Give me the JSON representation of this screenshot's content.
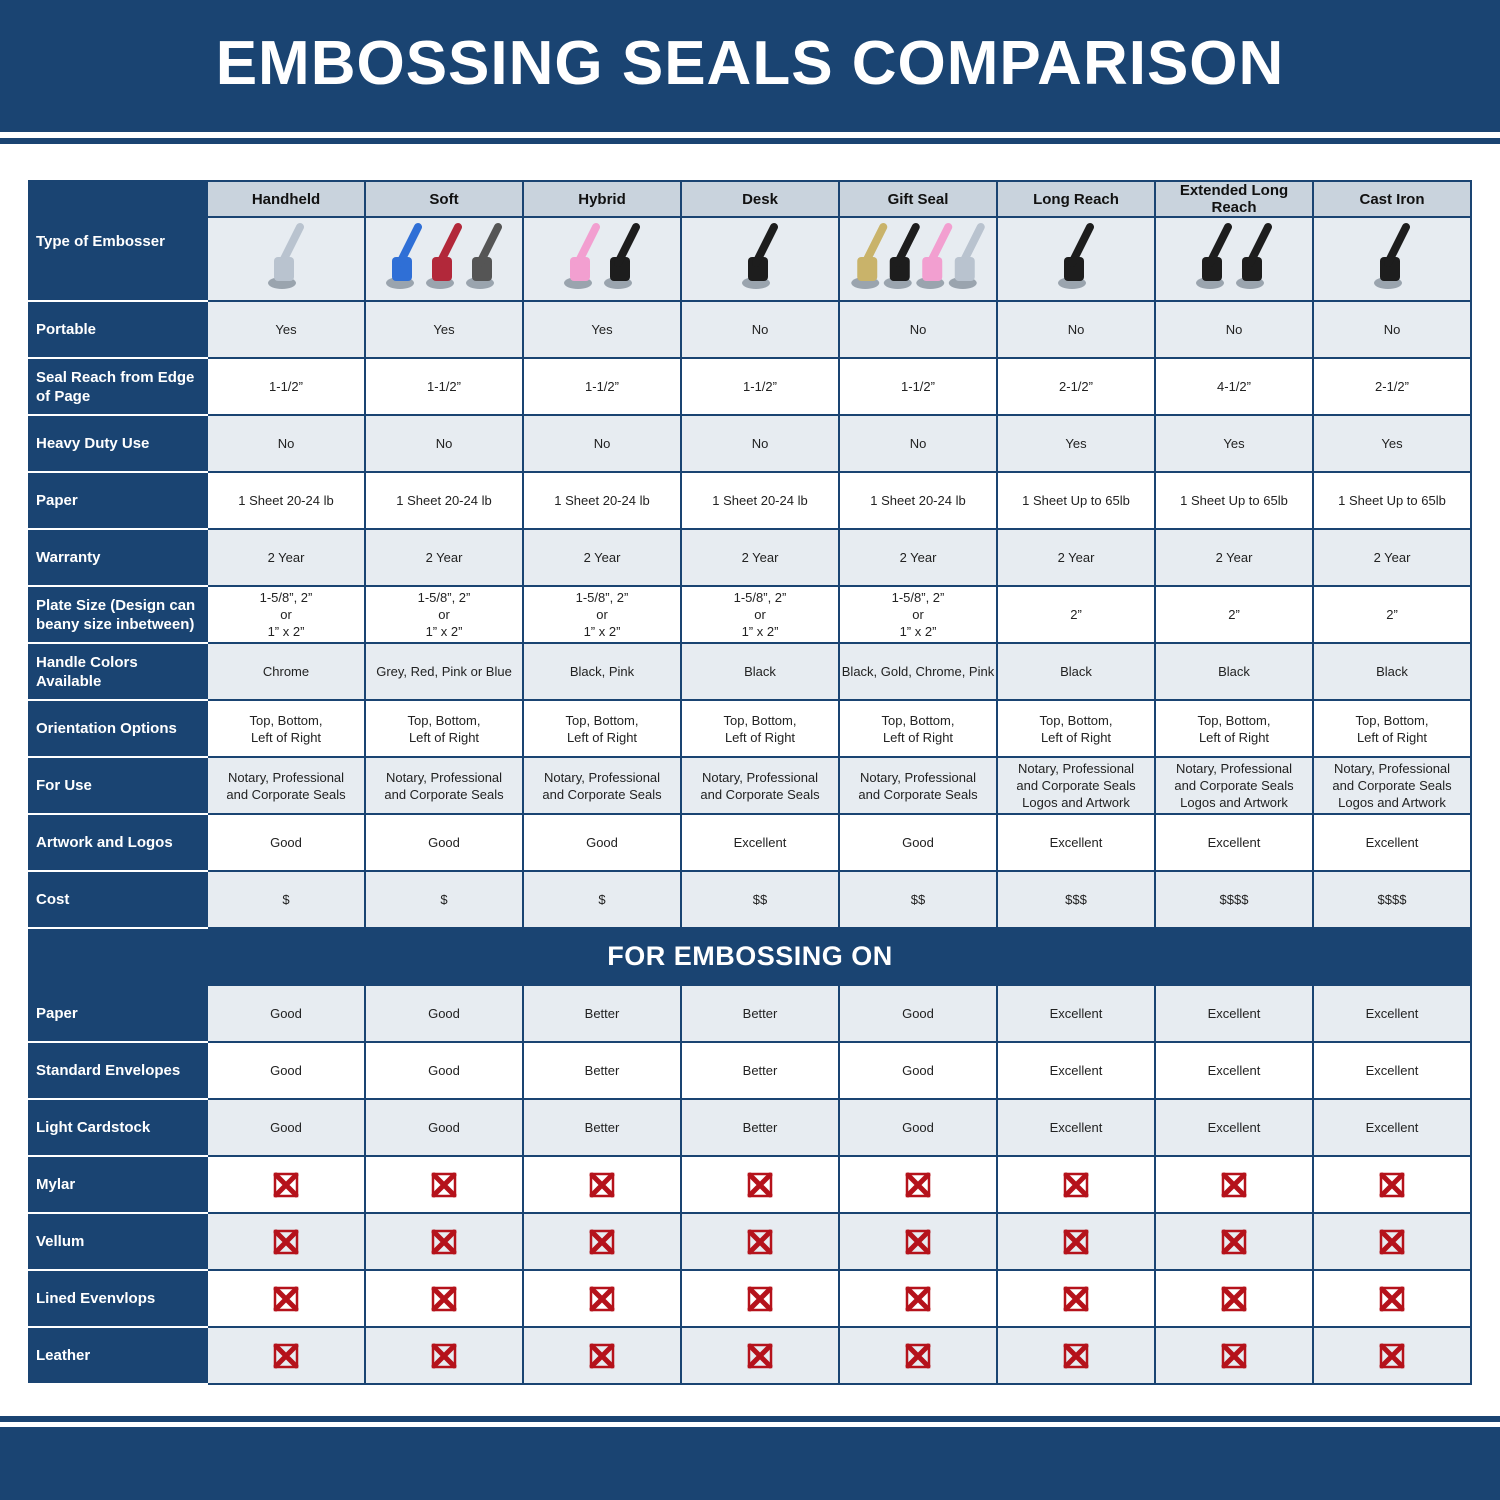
{
  "title": "EMBOSSING SEALS COMPARISON",
  "colors": {
    "navy": "#1a4472",
    "header_gray": "#c9d3dd",
    "row_gray": "#e7ecf1",
    "cross_red": "#b5121b"
  },
  "type_label": "Type of Embosser",
  "columns": [
    "Handheld",
    "Soft",
    "Hybrid",
    "Desk",
    "Gift Seal",
    "Long Reach",
    "Extended Long Reach",
    "Cast Iron"
  ],
  "rows": [
    {
      "label": "Portable",
      "values": [
        "Yes",
        "Yes",
        "Yes",
        "No",
        "No",
        "No",
        "No",
        "No"
      ]
    },
    {
      "label": "Seal Reach from Edge of Page",
      "values": [
        "1-1/2”",
        "1-1/2”",
        "1-1/2”",
        "1-1/2”",
        "1-1/2”",
        "2-1/2”",
        "4-1/2”",
        "2-1/2”"
      ]
    },
    {
      "label": "Heavy Duty Use",
      "values": [
        "No",
        "No",
        "No",
        "No",
        "No",
        "Yes",
        "Yes",
        "Yes"
      ]
    },
    {
      "label": "Paper",
      "values": [
        "1 Sheet 20-24 lb",
        "1 Sheet 20-24 lb",
        "1 Sheet 20-24 lb",
        "1 Sheet 20-24 lb",
        "1 Sheet 20-24 lb",
        "1 Sheet Up to 65lb",
        "1 Sheet Up to 65lb",
        "1 Sheet Up to 65lb"
      ]
    },
    {
      "label": "Warranty",
      "values": [
        "2 Year",
        "2 Year",
        "2 Year",
        "2 Year",
        "2 Year",
        "2 Year",
        "2 Year",
        "2 Year"
      ]
    },
    {
      "label": "Plate Size (Design can beany size inbetween)",
      "values": [
        "1-5/8”, 2”\nor\n1” x 2”",
        "1-5/8”, 2”\nor\n1” x 2”",
        "1-5/8”, 2”\nor\n1” x 2”",
        "1-5/8”, 2”\nor\n1” x 2”",
        "1-5/8”, 2”\nor\n1” x 2”",
        "2”",
        "2”",
        "2”"
      ]
    },
    {
      "label": "Handle Colors Available",
      "values": [
        "Chrome",
        "Grey, Red, Pink or Blue",
        "Black, Pink",
        "Black",
        "Black, Gold, Chrome, Pink",
        "Black",
        "Black",
        "Black"
      ]
    },
    {
      "label": "Orientation Options",
      "values": [
        "Top, Bottom,\nLeft of Right",
        "Top, Bottom,\nLeft of Right",
        "Top, Bottom,\nLeft of Right",
        "Top, Bottom,\nLeft of Right",
        "Top, Bottom,\nLeft of Right",
        "Top, Bottom,\nLeft of Right",
        "Top, Bottom,\nLeft of Right",
        "Top, Bottom,\nLeft of Right"
      ]
    },
    {
      "label": "For Use",
      "values": [
        "Notary, Professional\nand Corporate Seals",
        "Notary, Professional\nand Corporate Seals",
        "Notary, Professional\nand Corporate Seals",
        "Notary, Professional\nand Corporate Seals",
        "Notary, Professional\nand Corporate Seals",
        "Notary, Professional\nand Corporate Seals\nLogos and Artwork",
        "Notary, Professional\nand Corporate Seals\nLogos and Artwork",
        "Notary, Professional\nand Corporate Seals\nLogos and Artwork"
      ]
    },
    {
      "label": "Artwork and Logos",
      "values": [
        "Good",
        "Good",
        "Good",
        "Excellent",
        "Good",
        "Excellent",
        "Excellent",
        "Excellent"
      ]
    },
    {
      "label": "Cost",
      "values": [
        "$",
        "$",
        "$",
        "$$",
        "$$",
        "$$$",
        "$$$$",
        "$$$$"
      ]
    }
  ],
  "section_title": "FOR EMBOSSING ON",
  "embossing_rows": [
    {
      "label": "Paper",
      "values": [
        "Good",
        "Good",
        "Better",
        "Better",
        "Good",
        "Excellent",
        "Excellent",
        "Excellent"
      ]
    },
    {
      "label": "Standard Envelopes",
      "values": [
        "Good",
        "Good",
        "Better",
        "Better",
        "Good",
        "Excellent",
        "Excellent",
        "Excellent"
      ]
    },
    {
      "label": "Light Cardstock",
      "values": [
        "Good",
        "Good",
        "Better",
        "Better",
        "Good",
        "Excellent",
        "Excellent",
        "Excellent"
      ]
    },
    {
      "label": "Mylar",
      "values": [
        "x",
        "x",
        "x",
        "x",
        "x",
        "x",
        "x",
        "x"
      ]
    },
    {
      "label": "Vellum",
      "values": [
        "x",
        "x",
        "x",
        "x",
        "x",
        "x",
        "x",
        "x"
      ]
    },
    {
      "label": "Lined Evenvlops",
      "values": [
        "x",
        "x",
        "x",
        "x",
        "x",
        "x",
        "x",
        "x"
      ]
    },
    {
      "label": "Leather",
      "values": [
        "x",
        "x",
        "x",
        "x",
        "x",
        "x",
        "x",
        "x"
      ]
    }
  ],
  "embosser_images": [
    "chrome-handheld-embosser",
    "blue-red-grey-soft-embossers",
    "pink-black-hybrid-embossers",
    "black-desk-embosser",
    "gold-black-pink-chrome-gift-seals",
    "black-long-reach-embosser",
    "black-extended-long-reach-embossers",
    "black-cast-iron-embosser"
  ]
}
